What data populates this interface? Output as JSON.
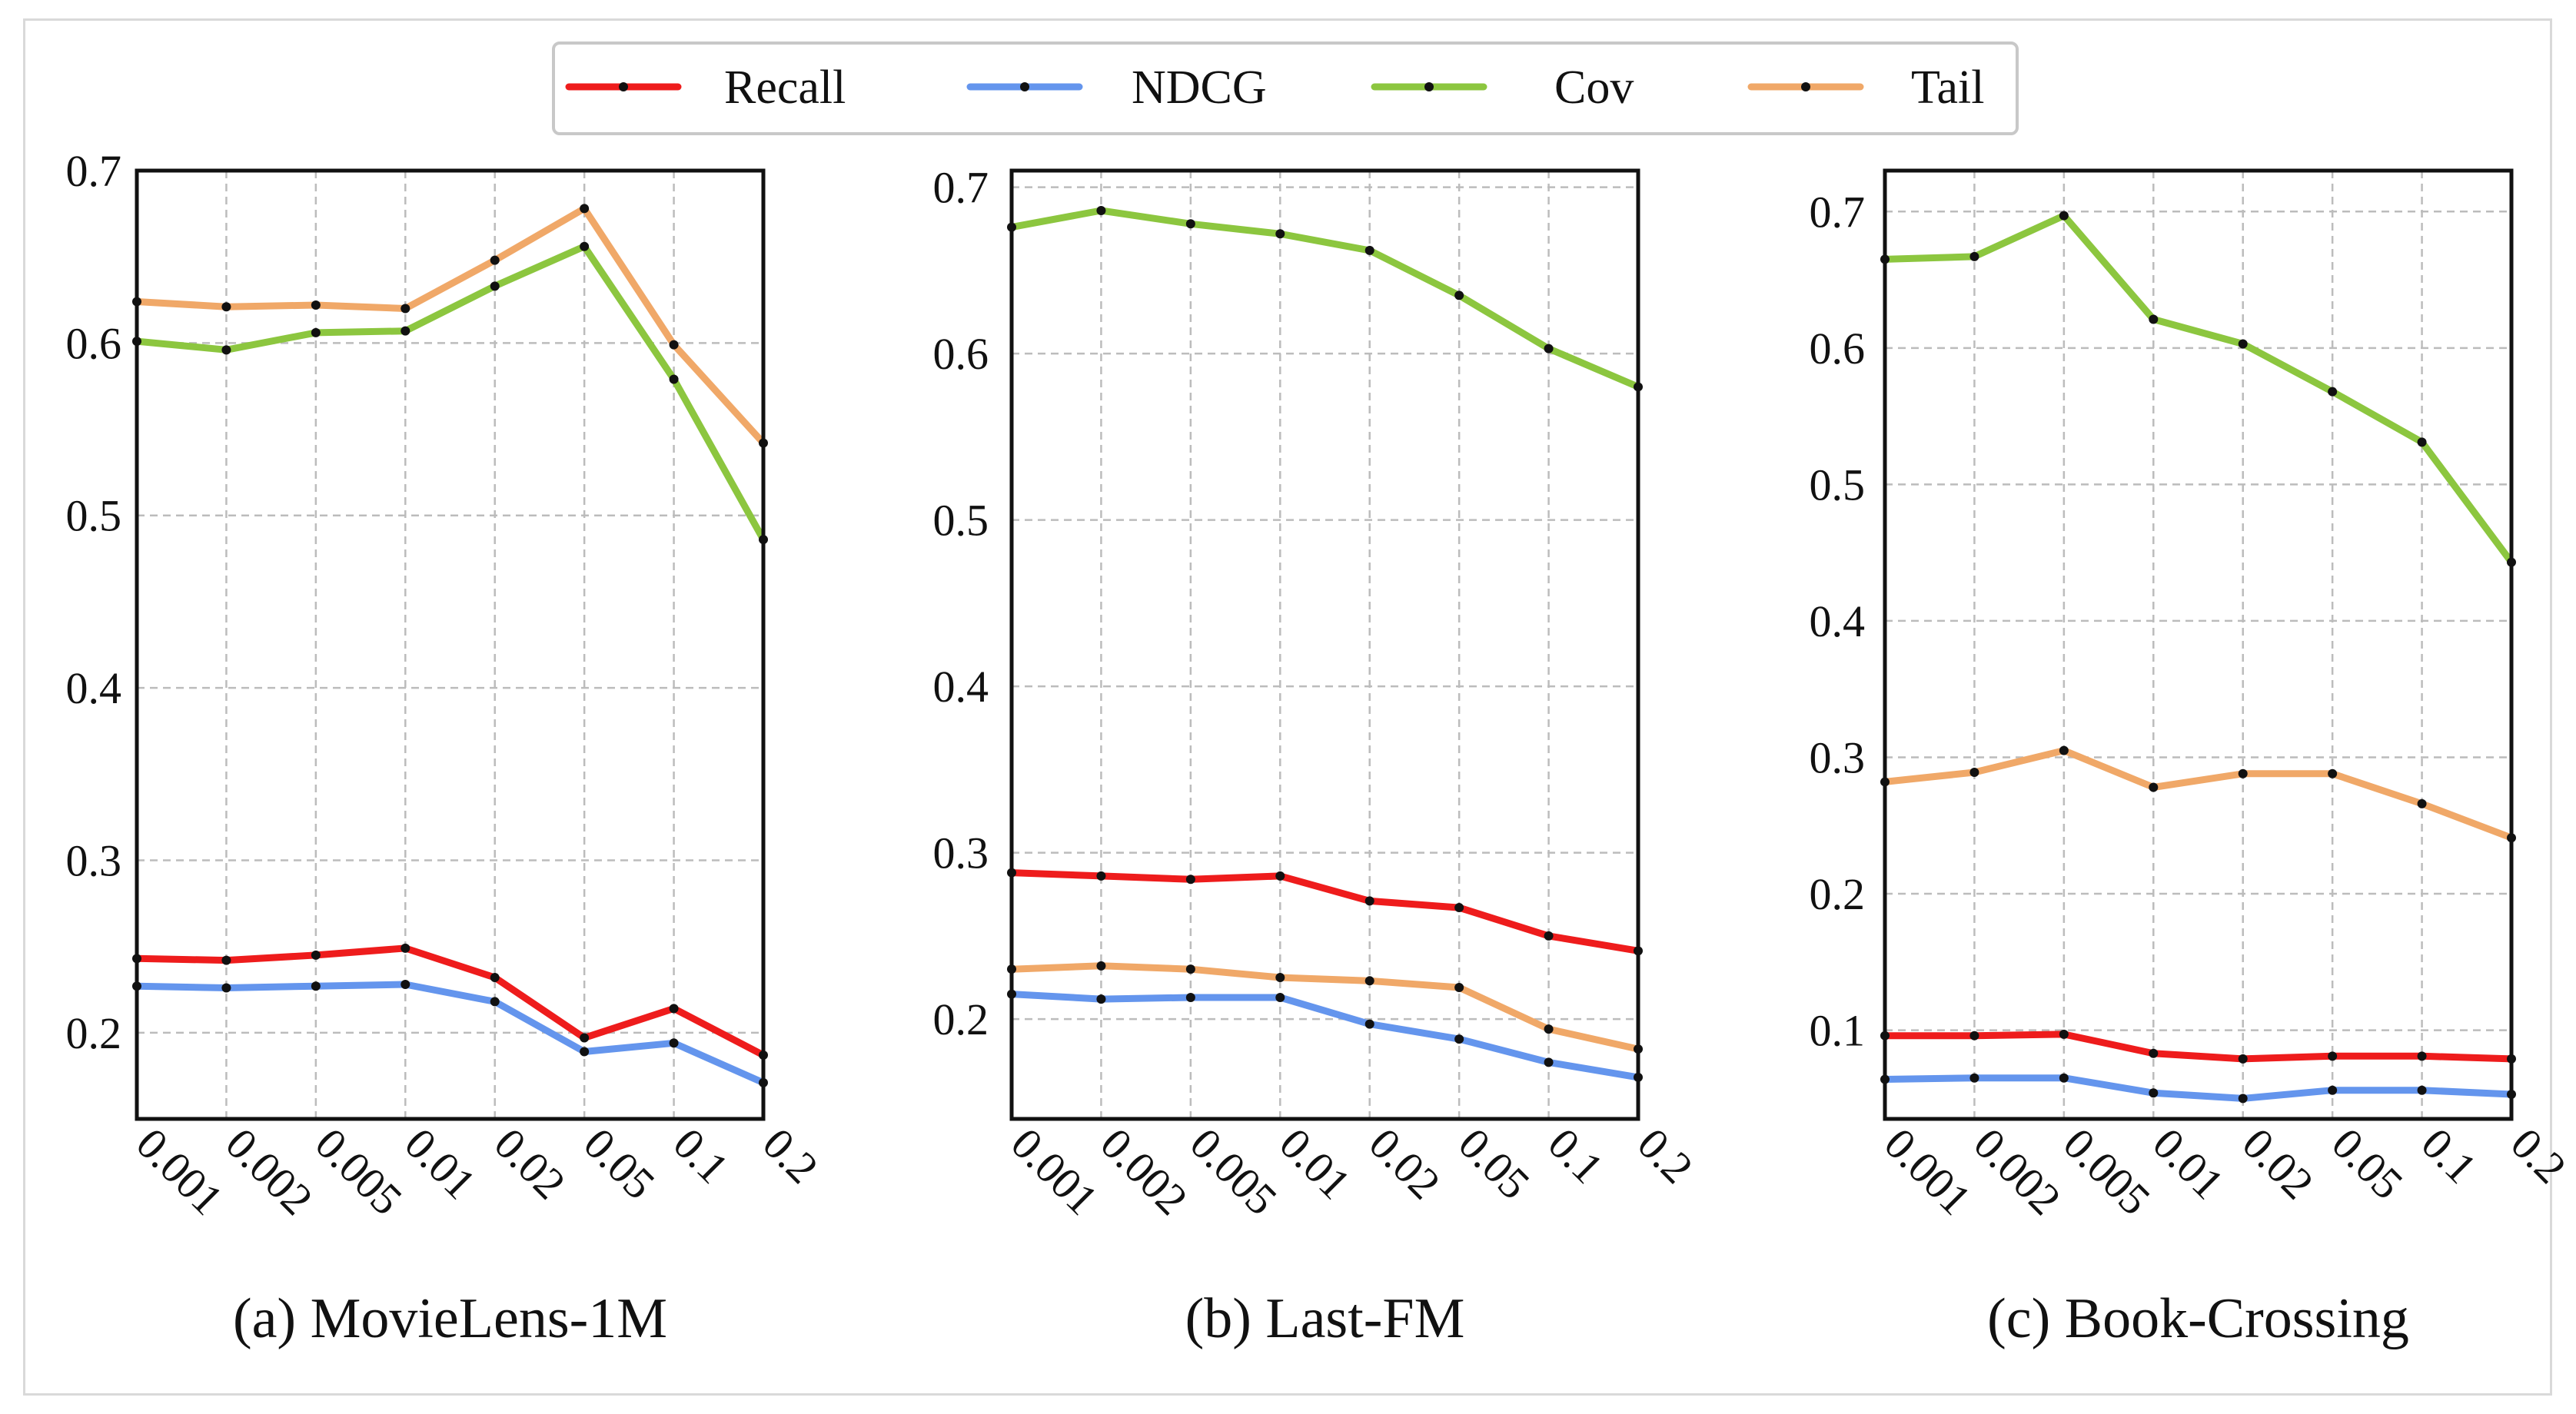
{
  "legend": [
    {
      "name": "Recall",
      "color": "#ee1c1c"
    },
    {
      "name": "NDCG",
      "color": "#6495ed"
    },
    {
      "name": "Cov",
      "color": "#8cc63f"
    },
    {
      "name": "Tail",
      "color": "#f0a868"
    }
  ],
  "chart_data": [
    {
      "type": "line",
      "caption": "(a) MovieLens-1M",
      "categories": [
        "0.001",
        "0.002",
        "0.005",
        "0.01",
        "0.02",
        "0.05",
        "0.1",
        "0.2"
      ],
      "ylim": [
        0.15,
        0.7
      ],
      "yticks": [
        0.2,
        0.3,
        0.4,
        0.5,
        0.6,
        0.7
      ],
      "ytick_labels": [
        "0.2",
        "0.3",
        "0.4",
        "0.5",
        "0.6",
        "0.7"
      ],
      "grid": true,
      "series": [
        {
          "name": "Recall",
          "values": [
            0.243,
            0.242,
            0.245,
            0.249,
            0.232,
            0.197,
            0.214,
            0.187
          ]
        },
        {
          "name": "NDCG",
          "values": [
            0.227,
            0.226,
            0.227,
            0.228,
            0.218,
            0.189,
            0.194,
            0.171
          ]
        },
        {
          "name": "Cov",
          "values": [
            0.601,
            0.596,
            0.606,
            0.607,
            0.633,
            0.656,
            0.579,
            0.486
          ]
        },
        {
          "name": "Tail",
          "values": [
            0.624,
            0.621,
            0.622,
            0.62,
            0.648,
            0.678,
            0.599,
            0.542
          ]
        }
      ]
    },
    {
      "type": "line",
      "caption": "(b) Last-FM",
      "categories": [
        "0.001",
        "0.002",
        "0.005",
        "0.01",
        "0.02",
        "0.05",
        "0.1",
        "0.2"
      ],
      "ylim": [
        0.14,
        0.71
      ],
      "yticks": [
        0.2,
        0.3,
        0.4,
        0.5,
        0.6,
        0.7
      ],
      "ytick_labels": [
        "0.2",
        "0.3",
        "0.4",
        "0.5",
        "0.6",
        "0.7"
      ],
      "grid": true,
      "series": [
        {
          "name": "Recall",
          "values": [
            0.288,
            0.286,
            0.284,
            0.286,
            0.271,
            0.267,
            0.25,
            0.241
          ]
        },
        {
          "name": "NDCG",
          "values": [
            0.215,
            0.212,
            0.213,
            0.213,
            0.197,
            0.188,
            0.174,
            0.165
          ]
        },
        {
          "name": "Cov",
          "values": [
            0.676,
            0.686,
            0.678,
            0.672,
            0.662,
            0.635,
            0.603,
            0.58
          ]
        },
        {
          "name": "Tail",
          "values": [
            0.23,
            0.232,
            0.23,
            0.225,
            0.223,
            0.219,
            0.194,
            0.182
          ]
        }
      ]
    },
    {
      "type": "line",
      "caption": "(c) Book-Crossing",
      "categories": [
        "0.001",
        "0.002",
        "0.005",
        "0.01",
        "0.02",
        "0.05",
        "0.1",
        "0.2"
      ],
      "ylim": [
        0.035,
        0.73
      ],
      "yticks": [
        0.1,
        0.2,
        0.3,
        0.4,
        0.5,
        0.6,
        0.7
      ],
      "ytick_labels": [
        "0.1",
        "0.2",
        "0.3",
        "0.4",
        "0.5",
        "0.6",
        "0.7"
      ],
      "grid": true,
      "series": [
        {
          "name": "Recall",
          "values": [
            0.096,
            0.096,
            0.097,
            0.083,
            0.079,
            0.081,
            0.081,
            0.079
          ]
        },
        {
          "name": "NDCG",
          "values": [
            0.064,
            0.065,
            0.065,
            0.054,
            0.05,
            0.056,
            0.056,
            0.053
          ]
        },
        {
          "name": "Cov",
          "values": [
            0.665,
            0.667,
            0.697,
            0.621,
            0.603,
            0.568,
            0.531,
            0.443
          ]
        },
        {
          "name": "Tail",
          "values": [
            0.282,
            0.289,
            0.305,
            0.278,
            0.288,
            0.288,
            0.266,
            0.241
          ]
        }
      ]
    }
  ]
}
